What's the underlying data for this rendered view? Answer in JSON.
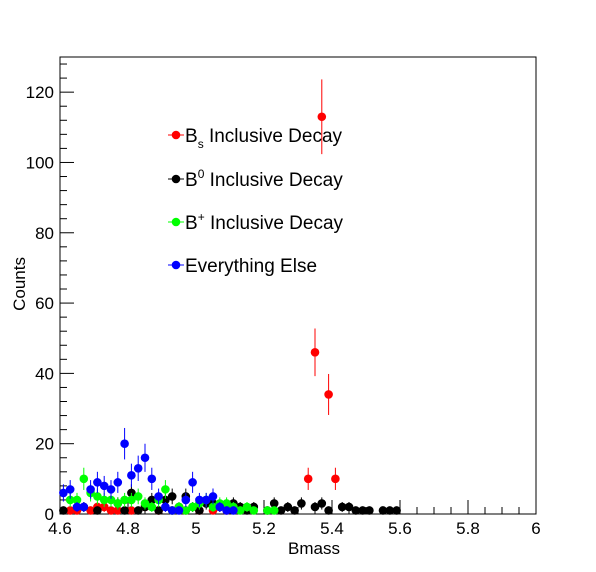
{
  "chart_data": {
    "type": "scatter",
    "title": "",
    "xlabel": "Bmass",
    "ylabel": "Counts",
    "xlim": [
      4.6,
      6.0
    ],
    "ylim": [
      0,
      130
    ],
    "x_ticks": [
      4.6,
      4.8,
      5.0,
      5.2,
      5.4,
      5.6,
      5.8,
      6.0
    ],
    "x_tick_labels": [
      "4.6",
      "4.8",
      "5",
      "5.2",
      "5.4",
      "5.6",
      "5.8",
      "6"
    ],
    "y_ticks": [
      0,
      20,
      40,
      60,
      80,
      100,
      120
    ],
    "y_tick_labels": [
      "0",
      "20",
      "40",
      "60",
      "80",
      "100",
      "120"
    ],
    "grid": false,
    "legend_position": "upper-center",
    "series": [
      {
        "name_base": "B",
        "name_sub": "s",
        "name_sup": "",
        "name_rest": " Inclusive Decay",
        "color": "#ff0000",
        "x": [
          4.63,
          4.65,
          4.69,
          4.71,
          4.73,
          4.75,
          4.77,
          4.81,
          4.85,
          4.89,
          4.93,
          4.97,
          5.01,
          5.05,
          5.09,
          5.33,
          5.35,
          5.37,
          5.39,
          5.41
        ],
        "y": [
          1,
          1,
          1,
          2,
          2,
          1,
          1,
          1,
          2,
          1,
          1,
          1,
          1,
          1,
          1,
          10,
          46,
          113,
          34,
          10
        ]
      },
      {
        "name_base": "B",
        "name_sub": "",
        "name_sup": "0",
        "name_rest": " Inclusive Decay",
        "color": "#000000",
        "x": [
          4.61,
          4.67,
          4.71,
          4.77,
          4.79,
          4.81,
          4.83,
          4.85,
          4.87,
          4.89,
          4.91,
          4.93,
          4.95,
          4.97,
          4.99,
          5.01,
          5.03,
          5.05,
          5.07,
          5.09,
          5.11,
          5.13,
          5.15,
          5.17,
          5.21,
          5.23,
          5.25,
          5.27,
          5.29,
          5.31,
          5.35,
          5.37,
          5.39,
          5.43,
          5.45,
          5.47,
          5.49,
          5.51,
          5.55,
          5.57,
          5.59
        ],
        "y": [
          1,
          2,
          1,
          3,
          1,
          6,
          1,
          2,
          4,
          1,
          4,
          5,
          2,
          5,
          2,
          1,
          3,
          3,
          2,
          2,
          3,
          2,
          1,
          2,
          1,
          3,
          1,
          2,
          1,
          3,
          2,
          3,
          1,
          2,
          2,
          1,
          1,
          1,
          1,
          1,
          1
        ]
      },
      {
        "name_base": "B",
        "name_sub": "",
        "name_sup": "+",
        "name_rest": " Inclusive Decay",
        "color": "#00ff00",
        "x": [
          4.63,
          4.65,
          4.67,
          4.69,
          4.71,
          4.73,
          4.75,
          4.77,
          4.79,
          4.81,
          4.83,
          4.85,
          4.87,
          4.89,
          4.91,
          4.93,
          4.95,
          4.97,
          4.99,
          5.01,
          5.03,
          5.05,
          5.07,
          5.09,
          5.11,
          5.13,
          5.15,
          5.17,
          5.21,
          5.23
        ],
        "y": [
          4,
          4,
          10,
          6,
          5,
          4,
          4,
          3,
          4,
          4,
          5,
          3,
          2,
          4,
          7,
          1,
          2,
          1,
          2,
          3,
          4,
          2,
          3,
          3,
          2,
          1,
          2,
          1,
          1,
          1
        ]
      },
      {
        "name_base": "Everything Else",
        "name_sub": "",
        "name_sup": "",
        "name_rest": "",
        "color": "#0000ff",
        "x": [
          4.61,
          4.63,
          4.65,
          4.67,
          4.69,
          4.71,
          4.73,
          4.75,
          4.77,
          4.79,
          4.81,
          4.83,
          4.85,
          4.87,
          4.89,
          4.91,
          4.93,
          4.95,
          4.97,
          4.99,
          5.01,
          5.03,
          5.05,
          5.07,
          5.09,
          5.11
        ],
        "y": [
          6,
          7,
          2,
          2,
          7,
          9,
          8,
          7,
          9,
          20,
          11,
          13,
          16,
          10,
          5,
          2,
          1,
          1,
          4,
          9,
          4,
          4,
          5,
          2,
          1,
          1
        ]
      }
    ]
  }
}
